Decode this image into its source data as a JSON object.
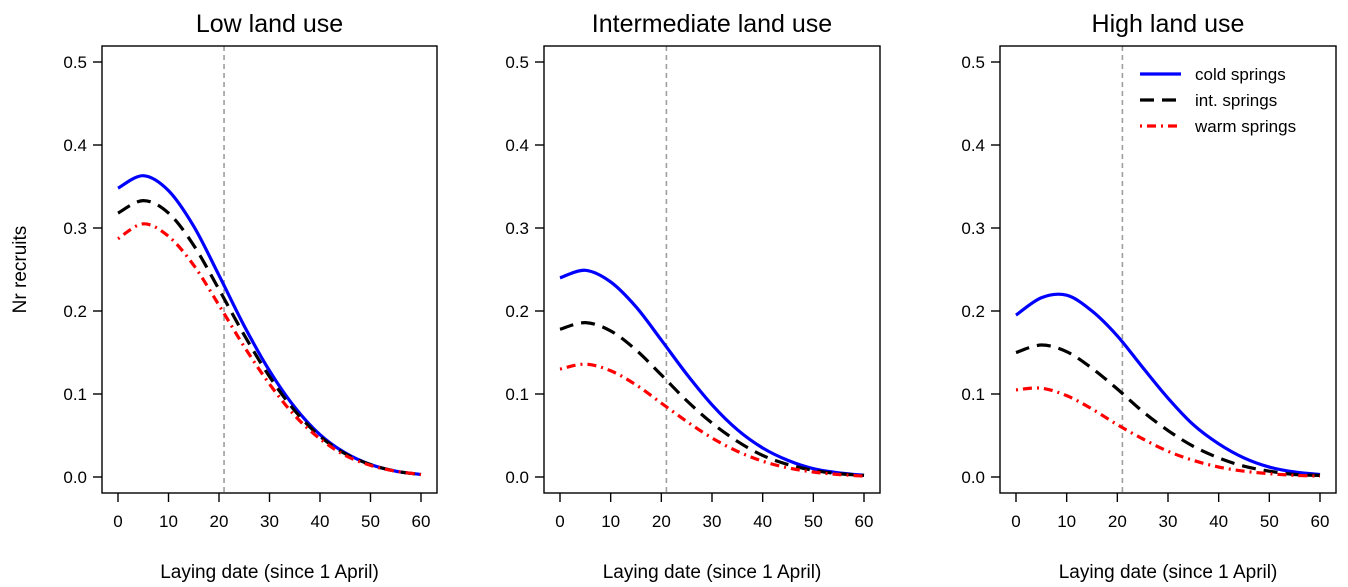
{
  "chart_data": [
    {
      "type": "line",
      "title": "Low land use",
      "xlabel": "Laying date (since 1 April)",
      "ylabel": "Nr recruits",
      "xlim": [
        0,
        60
      ],
      "ylim": [
        0,
        0.5
      ],
      "xticks": [
        "0",
        "10",
        "20",
        "30",
        "40",
        "50",
        "60"
      ],
      "yticks": [
        "0.0",
        "0.1",
        "0.2",
        "0.3",
        "0.4",
        "0.5"
      ],
      "reference_line_x": 21,
      "legend": false,
      "x": [
        0,
        5,
        10,
        15,
        20,
        25,
        30,
        35,
        40,
        45,
        50,
        55,
        60
      ],
      "series": [
        {
          "name": "cold springs",
          "color": "#0000ff",
          "style": "solid",
          "values": [
            0.348,
            0.363,
            0.345,
            0.302,
            0.243,
            0.182,
            0.128,
            0.084,
            0.051,
            0.029,
            0.015,
            0.007,
            0.003
          ]
        },
        {
          "name": "int. springs",
          "color": "#000000",
          "style": "dashed",
          "values": [
            0.318,
            0.333,
            0.318,
            0.279,
            0.226,
            0.171,
            0.121,
            0.08,
            0.049,
            0.028,
            0.015,
            0.007,
            0.003
          ]
        },
        {
          "name": "warm springs",
          "color": "#ff0000",
          "style": "dashdot",
          "values": [
            0.287,
            0.305,
            0.29,
            0.255,
            0.207,
            0.157,
            0.112,
            0.074,
            0.046,
            0.026,
            0.014,
            0.007,
            0.003
          ]
        }
      ]
    },
    {
      "type": "line",
      "title": "Intermediate land use",
      "xlabel": "Laying date (since 1 April)",
      "ylabel": "",
      "xlim": [
        0,
        60
      ],
      "ylim": [
        0,
        0.5
      ],
      "xticks": [
        "0",
        "10",
        "20",
        "30",
        "40",
        "50",
        "60"
      ],
      "yticks": [
        "0.0",
        "0.1",
        "0.2",
        "0.3",
        "0.4",
        "0.5"
      ],
      "reference_line_x": 21,
      "legend": false,
      "x": [
        0,
        5,
        10,
        15,
        20,
        25,
        30,
        35,
        40,
        45,
        50,
        55,
        60
      ],
      "series": [
        {
          "name": "cold springs",
          "color": "#0000ff",
          "style": "solid",
          "values": [
            0.24,
            0.249,
            0.235,
            0.205,
            0.165,
            0.124,
            0.087,
            0.057,
            0.035,
            0.02,
            0.01,
            0.005,
            0.002
          ]
        },
        {
          "name": "int. springs",
          "color": "#000000",
          "style": "dashed",
          "values": [
            0.178,
            0.186,
            0.176,
            0.153,
            0.123,
            0.092,
            0.065,
            0.043,
            0.026,
            0.015,
            0.008,
            0.004,
            0.002
          ]
        },
        {
          "name": "warm springs",
          "color": "#ff0000",
          "style": "dashdot",
          "values": [
            0.13,
            0.136,
            0.128,
            0.111,
            0.089,
            0.067,
            0.047,
            0.031,
            0.019,
            0.011,
            0.006,
            0.003,
            0.001
          ]
        }
      ]
    },
    {
      "type": "line",
      "title": "High land use",
      "xlabel": "Laying date (since 1 April)",
      "ylabel": "",
      "xlim": [
        0,
        60
      ],
      "ylim": [
        0,
        0.5
      ],
      "xticks": [
        "0",
        "10",
        "20",
        "30",
        "40",
        "50",
        "60"
      ],
      "yticks": [
        "0.0",
        "0.1",
        "0.2",
        "0.3",
        "0.4",
        "0.5"
      ],
      "reference_line_x": 21,
      "legend": true,
      "legend_position": "top-right",
      "x": [
        0,
        5,
        10,
        15,
        20,
        25,
        30,
        35,
        40,
        45,
        50,
        55,
        60
      ],
      "series": [
        {
          "name": "cold springs",
          "color": "#0000ff",
          "style": "solid",
          "values": [
            0.195,
            0.216,
            0.219,
            0.2,
            0.17,
            0.132,
            0.095,
            0.063,
            0.04,
            0.023,
            0.012,
            0.006,
            0.003
          ]
        },
        {
          "name": "int. springs",
          "color": "#000000",
          "style": "dashed",
          "values": [
            0.15,
            0.159,
            0.151,
            0.131,
            0.106,
            0.079,
            0.056,
            0.037,
            0.023,
            0.013,
            0.007,
            0.003,
            0.002
          ]
        },
        {
          "name": "warm springs",
          "color": "#ff0000",
          "style": "dashdot",
          "values": [
            0.105,
            0.107,
            0.098,
            0.082,
            0.063,
            0.046,
            0.031,
            0.02,
            0.012,
            0.007,
            0.004,
            0.002,
            0.001
          ]
        }
      ]
    }
  ]
}
